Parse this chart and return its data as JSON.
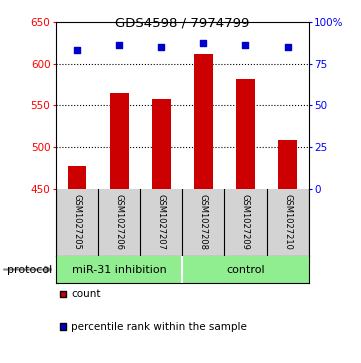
{
  "title": "GDS4598 / 7974799",
  "samples": [
    "GSM1027205",
    "GSM1027206",
    "GSM1027207",
    "GSM1027208",
    "GSM1027209",
    "GSM1027210"
  ],
  "counts": [
    477,
    565,
    558,
    612,
    581,
    509
  ],
  "percentile_ranks": [
    83,
    86,
    85,
    87,
    86,
    85
  ],
  "ylim_left": [
    450,
    650
  ],
  "ylim_right": [
    0,
    100
  ],
  "yticks_left": [
    450,
    500,
    550,
    600,
    650
  ],
  "yticks_right": [
    0,
    25,
    50,
    75,
    100
  ],
  "ytick_right_labels": [
    "0",
    "25",
    "50",
    "75",
    "100%"
  ],
  "bar_color": "#cc0000",
  "scatter_color": "#0000cc",
  "group_labels": [
    "miR-31 inhibition",
    "control"
  ],
  "group_color": "#90ee90",
  "group_divider": 3,
  "protocol_label": "protocol",
  "legend_count_label": "count",
  "legend_percentile_label": "percentile rank within the sample",
  "bar_baseline": 450,
  "grid_dotted_at": [
    500,
    550,
    600
  ],
  "figsize": [
    3.61,
    3.63
  ],
  "dpi": 100
}
